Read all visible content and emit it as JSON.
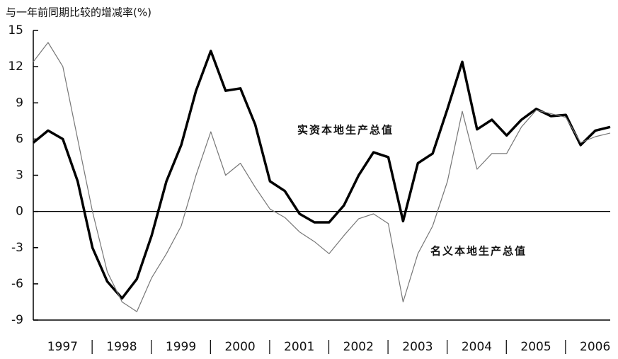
{
  "chart_data": {
    "type": "line",
    "title": "与一年前同期比较的增减率(%)",
    "categories": [
      "1997",
      null,
      null,
      null,
      "1998",
      null,
      null,
      null,
      "1999",
      null,
      null,
      null,
      "2000",
      null,
      null,
      null,
      "2001",
      null,
      null,
      null,
      "2002",
      null,
      null,
      null,
      "2003",
      null,
      null,
      null,
      "2004",
      null,
      null,
      null,
      "2005",
      null,
      null,
      null,
      "2006",
      null,
      null,
      null
    ],
    "series": [
      {
        "name": "实资本地生产总值",
        "color": "#000000",
        "values": [
          5.7,
          6.7,
          6.0,
          2.5,
          -3,
          -5.8,
          -7.2,
          -5.6,
          -2,
          2.5,
          5.5,
          10,
          13.3,
          10,
          10.2,
          7.2,
          2.5,
          1.7,
          -0.2,
          -0.9,
          -0.9,
          0.5,
          3,
          4.9,
          4.5,
          -0.8,
          4,
          4.8,
          8.5,
          12.4,
          6.8,
          7.6,
          6.3,
          7.6,
          8.5,
          7.9,
          8,
          5.5,
          6.7,
          7
        ]
      },
      {
        "name": "名义本地生产总值",
        "color": "#777777",
        "values": [
          12.4,
          14,
          12,
          6,
          0,
          -5,
          -7.5,
          -8.3,
          -5.5,
          -3.5,
          -1.2,
          3,
          6.6,
          3,
          4,
          2,
          0.2,
          -0.5,
          -1.7,
          -2.5,
          -3.5,
          -2,
          -0.6,
          -0.2,
          -1,
          -7.5,
          -3.5,
          -1.2,
          2.5,
          8.3,
          3.5,
          4.8,
          4.8,
          7,
          8.4,
          8.1,
          7.8,
          5.7,
          6.2,
          6.5
        ]
      }
    ],
    "ylim": [
      -9,
      15
    ],
    "yticks": [
      -9,
      -6,
      -3,
      0,
      3,
      6,
      9,
      12,
      15
    ],
    "grid": false
  }
}
